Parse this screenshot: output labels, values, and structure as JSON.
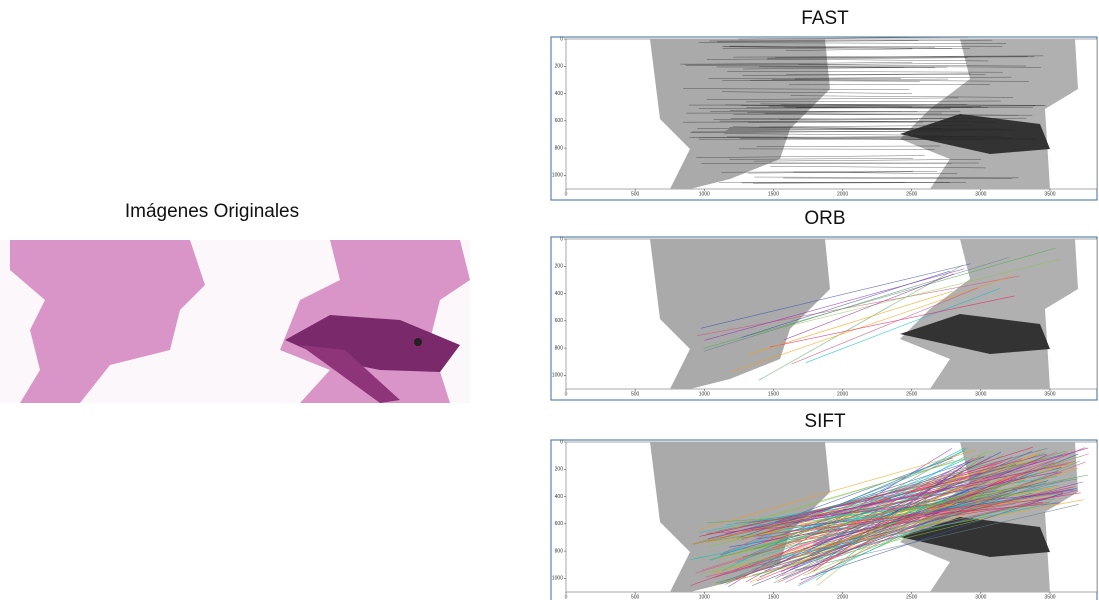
{
  "left": {
    "title": "Imágenes Originales"
  },
  "panels": [
    {
      "title": "FAST",
      "xlim": [
        0,
        3840
      ],
      "ylim": [
        0,
        1100
      ],
      "xticks": [
        0,
        500,
        1000,
        1500,
        2000,
        2500,
        3000,
        3500
      ],
      "yticks": [
        0,
        200,
        400,
        600,
        800,
        1000
      ]
    },
    {
      "title": "ORB",
      "xlim": [
        0,
        3840
      ],
      "ylim": [
        0,
        1100
      ],
      "xticks": [
        0,
        500,
        1000,
        1500,
        2000,
        2500,
        3000,
        3500
      ],
      "yticks": [
        0,
        200,
        400,
        600,
        800,
        1000
      ]
    },
    {
      "title": "SIFT",
      "xlim": [
        0,
        3840
      ],
      "ylim": [
        0,
        1100
      ],
      "xticks": [
        0,
        500,
        1000,
        1500,
        2000,
        2500,
        3000,
        3500
      ],
      "yticks": [
        0,
        200,
        400,
        600,
        800,
        1000
      ]
    }
  ]
}
